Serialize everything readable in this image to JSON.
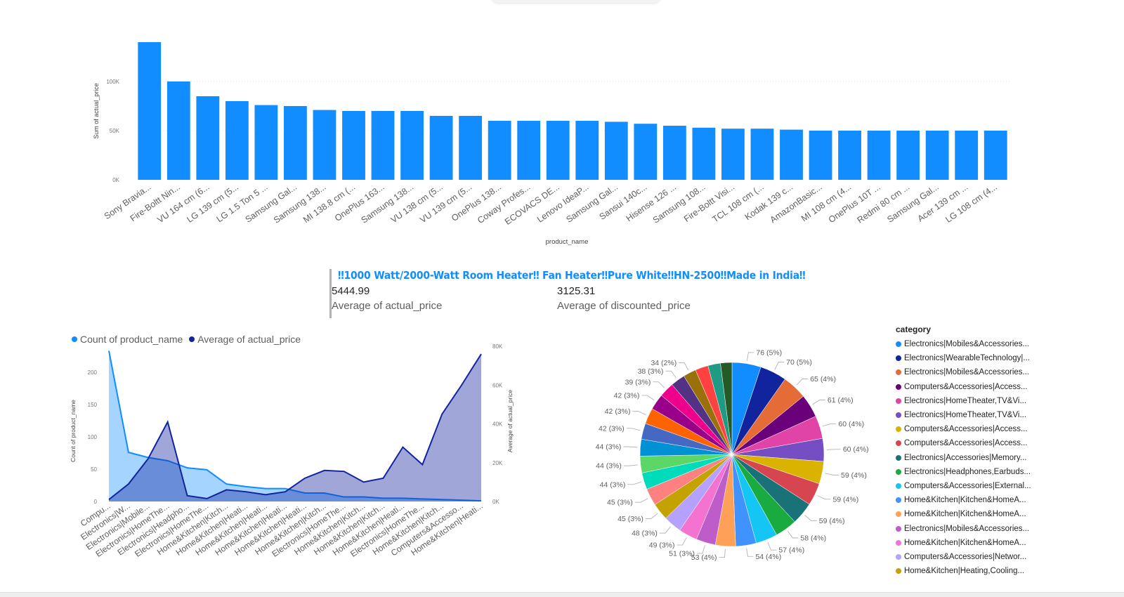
{
  "bar_chart": {
    "color": "#118dff",
    "chart_data": {
      "type": "bar",
      "title": "",
      "xlabel": "product_name",
      "ylabel": "Sum of actual_price",
      "ylim": [
        0,
        140000
      ],
      "yticks": [
        {
          "value": 0,
          "label": "0K"
        },
        {
          "value": 50000,
          "label": "50K"
        },
        {
          "value": 100000,
          "label": "100K"
        }
      ],
      "grid": true,
      "categories": [
        "Sony Bravia...",
        "Fire-Boltt Nin...",
        "VU 164 cm (6...",
        "LG 139 cm (5...",
        "LG 1.5 Ton 5 ...",
        "Samsung Gal...",
        "Samsung 138...",
        "MI 138.8 cm (...",
        "OnePlus 163...",
        "Samsung 138...",
        "VU 138 cm (5...",
        "VU 139 cm (5...",
        "OnePlus 138...",
        "Coway Profes...",
        "ECOVACS DE...",
        "Lenovo IdeaP...",
        "Samsung Gal...",
        "Sansui 140c...",
        "Hisense 126 ...",
        "Samsung 108...",
        "Fire-Boltt Visi...",
        "TCL 108 cm (...",
        "Kodak 139 c...",
        "AmazonBasic...",
        "MI 108 cm (4...",
        "OnePlus 10T ...",
        "Redmi 80 cm ...",
        "Samsung Gal...",
        "Acer 139 cm ...",
        "LG 108 cm (4..."
      ],
      "values": [
        140000,
        100000,
        85000,
        80000,
        76000,
        75000,
        71000,
        70000,
        70000,
        70000,
        65000,
        65000,
        60000,
        60000,
        60000,
        60000,
        59000,
        57000,
        55000,
        53000,
        52000,
        52000,
        51000,
        50000,
        50000,
        50000,
        50000,
        50000,
        50000,
        50000
      ]
    }
  },
  "card": {
    "title": "‼1000 Watt/2000-Watt Room Heater‼ Fan Heater‼Pure White‼HN-2500‼Made in India‼",
    "value1": "5444.99",
    "label1": "Average of actual_price",
    "value2": "3125.31",
    "label2": "Average of discounted_price"
  },
  "combo_chart": {
    "legend": [
      {
        "name": "Count of product_name",
        "color": "#118dff"
      },
      {
        "name": "Average of actual_price",
        "color": "#12239e"
      }
    ],
    "chart_data": {
      "type": "area",
      "title": "",
      "xlabel": "",
      "ylabel_left": "Count of product_name",
      "ylabel_right": "Average of actual_price",
      "ylim_left": [
        0,
        240
      ],
      "yticks_left": [
        {
          "value": 0,
          "label": "0"
        },
        {
          "value": 50,
          "label": "50"
        },
        {
          "value": 100,
          "label": "100"
        },
        {
          "value": 150,
          "label": "150"
        },
        {
          "value": 200,
          "label": "200"
        }
      ],
      "ylim_right": [
        0,
        80000
      ],
      "yticks_right": [
        {
          "value": 0,
          "label": "0K"
        },
        {
          "value": 20000,
          "label": "20K"
        },
        {
          "value": 40000,
          "label": "40K"
        },
        {
          "value": 60000,
          "label": "60K"
        },
        {
          "value": 80000,
          "label": "80K"
        }
      ],
      "categories": [
        "Compu...",
        "Electronics|W...",
        "Electronics|Mobile...",
        "Electronics|HomeThe...",
        "Electronics|Headpho...",
        "Electronics|HomeThe...",
        "Home&Kitchen|Kitch...",
        "Home&Kitchen|Heati...",
        "Home&Kitchen|Heati...",
        "Home&Kitchen|Heati...",
        "Home&Kitchen|Heati...",
        "Home&Kitchen|Kitch...",
        "Electronics|HomeThe...",
        "Home&Kitchen|Kitch...",
        "Home&Kitchen|Kitch...",
        "Home&Kitchen|Heati...",
        "Electronics|HomeThe...",
        "Home&Kitchen|Kitch...",
        "Computers&Accesso...",
        "Home&Kitchen|Heati..."
      ],
      "series": [
        {
          "name": "Count of product_name",
          "axis": "left",
          "color": "#118dff",
          "values": [
            233,
            76,
            68,
            63,
            52,
            49,
            27,
            23,
            20,
            20,
            13,
            13,
            7,
            7,
            5,
            5,
            4,
            3,
            2,
            1
          ]
        },
        {
          "name": "Average of actual_price",
          "axis": "right",
          "color": "#12239e",
          "values": [
            1000,
            9000,
            22000,
            41000,
            3000,
            1500,
            6000,
            5000,
            3500,
            5000,
            12000,
            16000,
            15500,
            10000,
            12000,
            28000,
            19000,
            45000,
            60000,
            76000
          ]
        }
      ]
    }
  },
  "pie_chart": {
    "legend_title": "category",
    "chart_data": {
      "type": "pie",
      "title": "",
      "slices": [
        {
          "category": "Electronics|Mobiles&Accessories...",
          "value": 76,
          "label": "76 (5%)",
          "color": "#118dff"
        },
        {
          "category": "Electronics|WearableTechnology|...",
          "value": 70,
          "label": "70 (5%)",
          "color": "#12239e"
        },
        {
          "category": "Electronics|Mobiles&Accessories...",
          "value": 65,
          "label": "65 (4%)",
          "color": "#e66c37"
        },
        {
          "category": "Computers&Accessories|Access...",
          "value": 61,
          "label": "61 (4%)",
          "color": "#6b007b"
        },
        {
          "category": "Electronics|HomeTheater,TV&Vi...",
          "value": 60,
          "label": "60 (4%)",
          "color": "#e044a7"
        },
        {
          "category": "Electronics|HomeTheater,TV&Vi...",
          "value": 60,
          "label": "60 (4%)",
          "color": "#744ec2"
        },
        {
          "category": "Computers&Accessories|Access...",
          "value": 59,
          "label": "59 (4%)",
          "color": "#d9b300"
        },
        {
          "category": "Computers&Accessories|Access...",
          "value": 59,
          "label": "59 (4%)",
          "color": "#d64550"
        },
        {
          "category": "Electronics|Accessories|Memory...",
          "value": 59,
          "label": "59 (4%)",
          "color": "#197278"
        },
        {
          "category": "Electronics|Headphones,Earbuds...",
          "value": 58,
          "label": "58 (4%)",
          "color": "#1aab40"
        },
        {
          "category": "Computers&Accessories|External...",
          "value": 57,
          "label": "57 (4%)",
          "color": "#15c6f4"
        },
        {
          "category": "Home&Kitchen|Kitchen&HomeA...",
          "value": 54,
          "label": "54 (4%)",
          "color": "#4092ff"
        },
        {
          "category": "Home&Kitchen|Kitchen&HomeA...",
          "value": 53,
          "label": "53 (4%)",
          "color": "#ffa058"
        },
        {
          "category": "Electronics|Mobiles&Accessories...",
          "value": 51,
          "label": "51 (3%)",
          "color": "#be5dc9"
        },
        {
          "category": "Home&Kitchen|Kitchen&HomeA...",
          "value": 49,
          "label": "49 (3%)",
          "color": "#f472d0"
        },
        {
          "category": "Computers&Accessories|Networ...",
          "value": 48,
          "label": "48 (3%)",
          "color": "#b5a1ff"
        },
        {
          "category": "Home&Kitchen|Heating,Cooling...",
          "value": 45,
          "label": "45 (3%)",
          "color": "#c4a200"
        },
        {
          "category": "",
          "value": 45,
          "label": "45 (3%)",
          "color": "#ff8080"
        },
        {
          "category": "",
          "value": 44,
          "label": "44 (3%)",
          "color": "#00dbbc"
        },
        {
          "category": "",
          "value": 44,
          "label": "44 (3%)",
          "color": "#5bd667"
        },
        {
          "category": "",
          "value": 44,
          "label": "44 (3%)",
          "color": "#0091d5"
        },
        {
          "category": "",
          "value": 42,
          "label": "42 (3%)",
          "color": "#4668c5"
        },
        {
          "category": "",
          "value": 42,
          "label": "42 (3%)",
          "color": "#ff6300"
        },
        {
          "category": "",
          "value": 42,
          "label": "42 (3%)",
          "color": "#99008a"
        },
        {
          "category": "",
          "value": 39,
          "label": "39 (3%)",
          "color": "#ec008c"
        },
        {
          "category": "",
          "value": 38,
          "label": "38 (3%)",
          "color": "#533285"
        },
        {
          "category": "",
          "value": 34,
          "label": "34 (2%)",
          "color": "#99700a"
        },
        {
          "category": "",
          "value": 34,
          "label": "",
          "color": "#ff4141"
        },
        {
          "category": "",
          "value": 33,
          "label": "",
          "color": "#1f9a85"
        },
        {
          "category": "",
          "value": 30,
          "label": "",
          "color": "#255a26"
        }
      ]
    }
  }
}
